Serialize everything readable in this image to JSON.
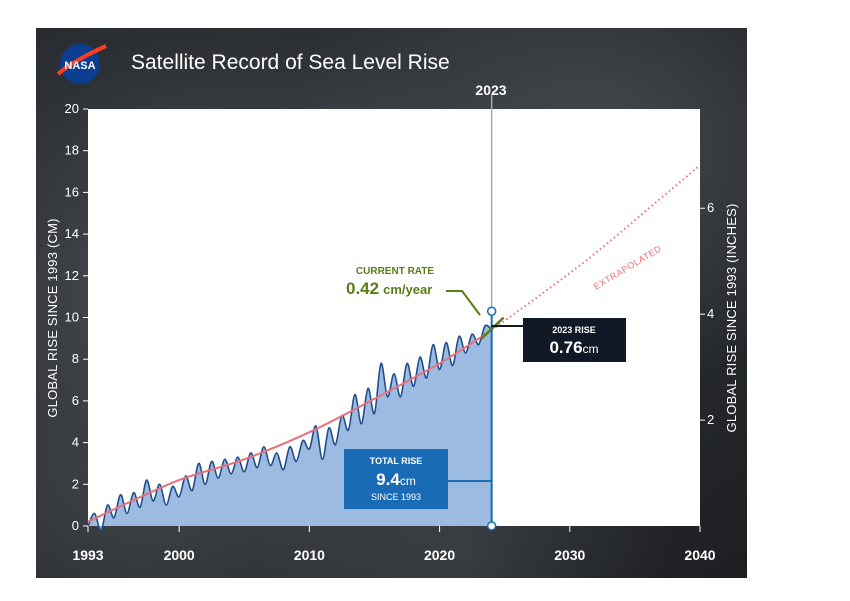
{
  "chart_data": {
    "type": "area",
    "title": "Satellite Record of Sea Level Rise",
    "logo_text": "NASA",
    "ylabel_left": "GLOBAL RISE SINCE 1993 (CM)",
    "ylabel_right": "GLOBAL RISE SINCE 1993 (INCHES)",
    "xlim": [
      1993,
      2040
    ],
    "ylim_cm": [
      0,
      20
    ],
    "ylim_in": [
      0,
      7.874
    ],
    "x_ticks": [
      1993,
      2000,
      2010,
      2020,
      2030,
      2040
    ],
    "x_tick_labels": [
      "1993",
      "2000",
      "2010",
      "2020",
      "2030",
      "2040"
    ],
    "y_ticks_cm": [
      0,
      2,
      4,
      6,
      8,
      10,
      12,
      14,
      16,
      18,
      20
    ],
    "y_tick_labels_cm": [
      "0",
      "2",
      "4",
      "6",
      "8",
      "10",
      "12",
      "14",
      "16",
      "18",
      "20"
    ],
    "y_ticks_in": [
      2,
      4,
      6
    ],
    "y_tick_labels_in": [
      "2",
      "4",
      "6"
    ],
    "year_marker": {
      "x": 2024,
      "label": "2023"
    },
    "series": [
      {
        "name": "Satellite sea level (cm)",
        "x": [
          1993.0,
          1993.5,
          1994.0,
          1994.5,
          1995.0,
          1995.5,
          1996.0,
          1996.5,
          1997.0,
          1997.5,
          1998.0,
          1998.5,
          1999.0,
          1999.5,
          2000.0,
          2000.5,
          2001.0,
          2001.5,
          2002.0,
          2002.5,
          2003.0,
          2003.5,
          2004.0,
          2004.5,
          2005.0,
          2005.5,
          2006.0,
          2006.5,
          2007.0,
          2007.5,
          2008.0,
          2008.5,
          2009.0,
          2009.5,
          2010.0,
          2010.5,
          2011.0,
          2011.5,
          2012.0,
          2012.5,
          2013.0,
          2013.5,
          2014.0,
          2014.5,
          2015.0,
          2015.5,
          2016.0,
          2016.5,
          2017.0,
          2017.5,
          2018.0,
          2018.5,
          2019.0,
          2019.5,
          2020.0,
          2020.5,
          2021.0,
          2021.5,
          2022.0,
          2022.5,
          2023.0,
          2023.5,
          2024.0
        ],
        "values": [
          0.0,
          0.6,
          -0.2,
          1.0,
          0.4,
          1.5,
          0.6,
          1.6,
          0.9,
          2.2,
          1.2,
          2.0,
          1.0,
          1.9,
          1.4,
          2.4,
          1.7,
          3.0,
          2.0,
          3.1,
          2.3,
          3.2,
          2.5,
          3.3,
          2.6,
          3.5,
          2.8,
          3.8,
          2.9,
          3.5,
          2.7,
          3.8,
          3.1,
          4.1,
          3.7,
          4.8,
          3.2,
          4.7,
          3.9,
          5.3,
          4.6,
          6.3,
          4.9,
          6.6,
          5.4,
          7.8,
          6.2,
          7.3,
          6.2,
          7.8,
          6.7,
          8.1,
          7.1,
          8.7,
          7.5,
          8.8,
          7.7,
          9.1,
          8.3,
          9.2,
          8.7,
          9.6,
          9.4
        ]
      },
      {
        "name": "Trend (cm)",
        "x": [
          1993,
          1995,
          2000,
          2005,
          2010,
          2015,
          2020,
          2024
        ],
        "values": [
          0.2,
          0.8,
          2.2,
          3.2,
          4.5,
          6.1,
          7.8,
          9.4
        ]
      },
      {
        "name": "Extrapolated (cm)",
        "x": [
          2024,
          2028,
          2032,
          2036,
          2040
        ],
        "values": [
          9.4,
          11.2,
          13.1,
          15.2,
          17.3
        ]
      }
    ],
    "annotations": {
      "current_rate_title": "CURRENT RATE",
      "current_rate_value": "0.42",
      "current_rate_unit": "cm/year",
      "rise_2023_title": "2023 RISE",
      "rise_2023_value": "0.76",
      "rise_2023_unit": "cm",
      "total_rise_title": "TOTAL RISE",
      "total_rise_value": "9.4",
      "total_rise_unit": "cm",
      "total_rise_sub": "SINCE 1993",
      "extrapolated": "EXTRAPOLATED"
    }
  },
  "colors": {
    "area_fill": "#9dbbe0",
    "data_line": "#1e4f8c",
    "trend_line": "#e8707a",
    "extrapolated_line": "#e8707a",
    "marker_line": "#1a6bb5",
    "rate_green": "#5b7d17",
    "rise_box": "#111826",
    "total_box": "#1a6bb5",
    "nasa_blue": "#0b3d91",
    "nasa_red": "#fc3d21"
  }
}
